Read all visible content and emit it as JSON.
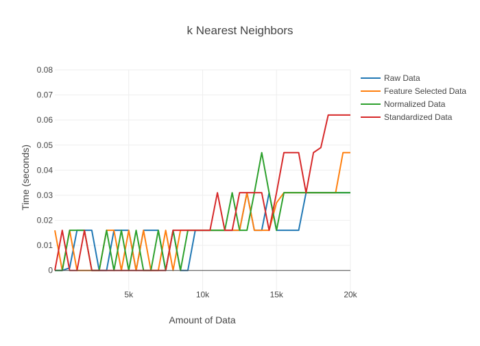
{
  "chart_data": {
    "type": "line",
    "title": "k Nearest Neighbors",
    "xlabel": "Amount of Data",
    "ylabel": "Time (seconds)",
    "xlim": [
      0,
      20000
    ],
    "ylim": [
      -0.008,
      0.08
    ],
    "x_ticks": [
      5000,
      10000,
      15000,
      20000
    ],
    "x_tick_labels": [
      "5k",
      "10k",
      "15k",
      "20k"
    ],
    "y_ticks": [
      0,
      0.01,
      0.02,
      0.03,
      0.04,
      0.05,
      0.06,
      0.07,
      0.08
    ],
    "y_tick_labels": [
      "0",
      "0.01",
      "0.02",
      "0.03",
      "0.04",
      "0.05",
      "0.06",
      "0.07",
      "0.08"
    ],
    "grid": true,
    "legend_position": "top-right",
    "x": [
      0,
      500,
      1000,
      1500,
      2000,
      2500,
      3000,
      3500,
      4000,
      4500,
      5000,
      5500,
      6000,
      6500,
      7000,
      7500,
      8000,
      8500,
      9000,
      9500,
      10000,
      10500,
      11000,
      11500,
      12000,
      12500,
      13000,
      13500,
      14000,
      14500,
      15000,
      15500,
      16000,
      16500,
      17000,
      17500,
      18000,
      18500,
      19000,
      19500,
      20000
    ],
    "series": [
      {
        "name": "Raw Data",
        "color": "#1f77b4",
        "values": [
          0,
          0,
          0.001,
          0.016,
          0.016,
          0.016,
          0,
          0,
          0.016,
          0.016,
          0.016,
          0,
          0.016,
          0.016,
          0.016,
          0,
          0.016,
          0,
          0,
          0.016,
          0.016,
          0.016,
          0.016,
          0.016,
          0.016,
          0.016,
          0.031,
          0.016,
          0.016,
          0.031,
          0.016,
          0.016,
          0.016,
          0.016,
          0.031,
          0.031,
          0.031,
          0.031,
          0.031,
          0.031,
          0.031
        ]
      },
      {
        "name": "Feature Selected Data",
        "color": "#ff7f0e",
        "values": [
          0.016,
          0,
          0.016,
          0,
          0,
          0,
          0,
          0.016,
          0.016,
          0,
          0.016,
          0,
          0.016,
          0,
          0,
          0.016,
          0,
          0.016,
          0.016,
          0.016,
          0.016,
          0.016,
          0.016,
          0.016,
          0.016,
          0.016,
          0.031,
          0.016,
          0.016,
          0.016,
          0.027,
          0.031,
          0.031,
          0.031,
          0.031,
          0.031,
          0.031,
          0.031,
          0.031,
          0.047,
          0.047
        ]
      },
      {
        "name": "Normalized Data",
        "color": "#2ca02c",
        "values": [
          0,
          0,
          0.016,
          0.016,
          0.016,
          0,
          0,
          0.016,
          0,
          0.016,
          0,
          0.016,
          0,
          0,
          0.016,
          0,
          0.016,
          0,
          0.016,
          0.016,
          0.016,
          0.016,
          0.016,
          0.016,
          0.031,
          0.016,
          0.016,
          0.031,
          0.047,
          0.031,
          0.016,
          0.031,
          0.031,
          0.031,
          0.031,
          0.031,
          0.031,
          0.031,
          0.031,
          0.031,
          0.031
        ]
      },
      {
        "name": "Standardized Data",
        "color": "#d62728",
        "values": [
          0,
          0.016,
          0,
          0,
          0.016,
          0,
          0,
          0,
          0,
          0,
          0,
          0,
          0,
          0,
          0,
          0,
          0.016,
          0.016,
          0.016,
          0.016,
          0.016,
          0.016,
          0.031,
          0.016,
          0.016,
          0.031,
          0.031,
          0.031,
          0.031,
          0.016,
          0.031,
          0.047,
          0.047,
          0.047,
          0.031,
          0.047,
          0.049,
          0.062,
          0.062,
          0.062,
          0.062
        ]
      }
    ]
  }
}
